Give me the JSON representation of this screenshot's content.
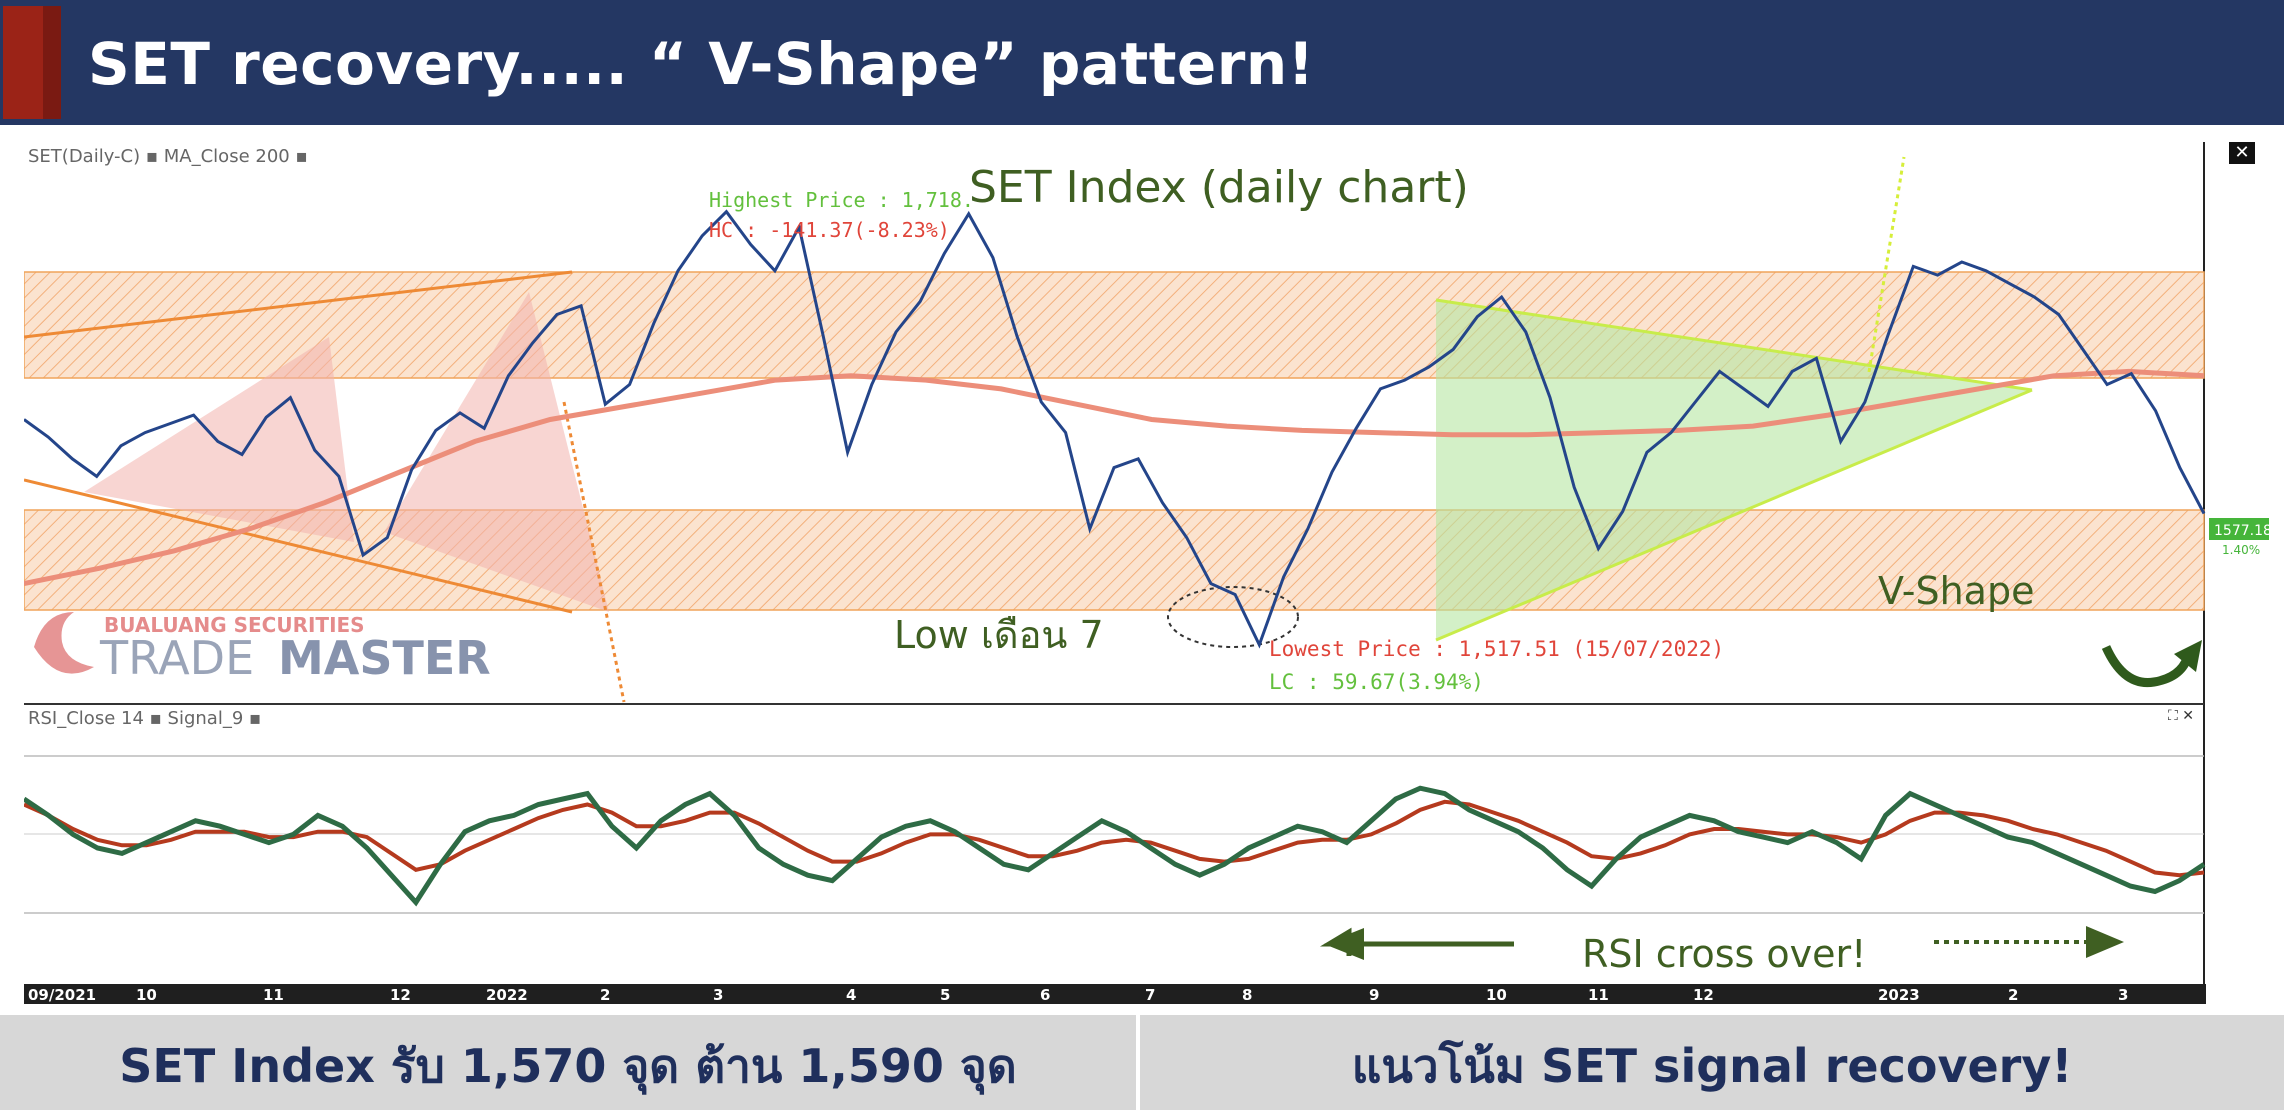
{
  "banner": {
    "title": "SET recovery..... “ V-Shape” pattern!"
  },
  "footer": {
    "left": "SET Index รับ 1,570 จุด ต้าน 1,590 จุด",
    "right": "แนวโน้ม SET signal recovery!"
  },
  "icons": {
    "close": "close-icon",
    "expand": "expand-icon"
  },
  "colors": {
    "banner_bg": "#243763",
    "banner_accent": "#9b2317",
    "price_line": "#24458a",
    "ma_line": "#ec8e7a",
    "zone_fill": "#f7c9a3",
    "zone_border": "#f0a45a",
    "rsi_line": "#2e6b45",
    "rsi_signal": "#b53a1e",
    "annotation_green": "#3f5f22",
    "lowest_red": "#e0453a"
  },
  "chart_data": [
    {
      "type": "line",
      "title": "SET Index (daily chart)",
      "header_label": "SET(Daily-C) ▪ MA_Close 200 ▪",
      "x_ticks": [
        "09/2021",
        "10",
        "11",
        "12",
        "2022",
        "2",
        "3",
        "4",
        "5",
        "6",
        "7",
        "8",
        "9",
        "10",
        "11",
        "12",
        "2023",
        "2",
        "3"
      ],
      "series": [
        {
          "name": "SET(Daily-C)",
          "values": [
            1620,
            1612,
            1602,
            1594,
            1608,
            1614,
            1618,
            1622,
            1610,
            1604,
            1621,
            1630,
            1606,
            1594,
            1558,
            1566,
            1597,
            1615,
            1623,
            1616,
            1640,
            1655,
            1668,
            1672,
            1627,
            1636,
            1664,
            1688,
            1704,
            1715,
            1700,
            1688,
            1708,
            1658,
            1605,
            1636,
            1660,
            1674,
            1696,
            1714,
            1694,
            1658,
            1628,
            1614,
            1570,
            1598,
            1602,
            1582,
            1566,
            1545,
            1540,
            1517,
            1548,
            1570,
            1596,
            1616,
            1634,
            1638,
            1644,
            1652,
            1667,
            1676,
            1660,
            1630,
            1589,
            1561,
            1578,
            1605,
            1614,
            1628,
            1642,
            1634,
            1626,
            1642,
            1648,
            1610,
            1628,
            1660,
            1690,
            1686,
            1692,
            1688,
            1682,
            1676,
            1668,
            1652,
            1636,
            1641,
            1624,
            1598,
            1577
          ]
        },
        {
          "name": "MA_Close 200",
          "values": [
            1545,
            1552,
            1560,
            1570,
            1582,
            1596,
            1610,
            1620,
            1626,
            1632,
            1638,
            1640,
            1638,
            1634,
            1627,
            1620,
            1617,
            1615,
            1614,
            1613,
            1613,
            1614,
            1615,
            1617,
            1622,
            1628,
            1634,
            1640,
            1642,
            1640
          ]
        }
      ],
      "annotations": {
        "highest": "Highest Price : 1,718.",
        "hc": "HC : -141.37(-8.23%)",
        "low_july": "Low เดือน 7",
        "lowest": "Lowest Price : 1,517.51 (15/07/2022)",
        "lc": "LC : 59.67(3.94%)",
        "vshape": "V-Shape",
        "last_price": "1577.18",
        "last_change": "1.40%"
      },
      "watermark": {
        "company": "BUALUANG SECURITIES",
        "brand_a": "TRADE",
        "brand_b": "MASTER"
      }
    },
    {
      "type": "line",
      "header_label": "RSI_Close 14 ▪ Signal_9 ▪",
      "ylim": [
        0,
        100
      ],
      "series": [
        {
          "name": "RSI_Close 14",
          "values": [
            68,
            62,
            55,
            50,
            48,
            52,
            56,
            60,
            58,
            55,
            52,
            55,
            62,
            58,
            50,
            40,
            30,
            44,
            56,
            60,
            62,
            66,
            68,
            70,
            58,
            50,
            60,
            66,
            70,
            62,
            50,
            44,
            40,
            38,
            46,
            54,
            58,
            60,
            56,
            50,
            44,
            42,
            48,
            54,
            60,
            56,
            50,
            44,
            40,
            44,
            50,
            54,
            58,
            56,
            52,
            60,
            68,
            72,
            70,
            64,
            60,
            56,
            50,
            42,
            36,
            46,
            54,
            58,
            62,
            60,
            56,
            54,
            52,
            56,
            52,
            46,
            62,
            70,
            66,
            62,
            58,
            54,
            52,
            48,
            44,
            40,
            36,
            34,
            38,
            44
          ]
        },
        {
          "name": "Signal_9",
          "values": [
            66,
            62,
            57,
            53,
            51,
            51,
            53,
            56,
            56,
            56,
            54,
            54,
            56,
            56,
            54,
            48,
            42,
            44,
            49,
            53,
            57,
            61,
            64,
            66,
            63,
            58,
            58,
            60,
            63,
            63,
            59,
            54,
            49,
            45,
            45,
            48,
            52,
            55,
            55,
            53,
            50,
            47,
            47,
            49,
            52,
            53,
            52,
            49,
            46,
            45,
            46,
            49,
            52,
            53,
            53,
            55,
            59,
            64,
            67,
            66,
            63,
            60,
            56,
            52,
            47,
            46,
            48,
            51,
            55,
            57,
            57,
            56,
            55,
            55,
            54,
            52,
            55,
            60,
            63,
            63,
            62,
            60,
            57,
            55,
            52,
            49,
            45,
            41,
            40,
            41
          ]
        }
      ],
      "annotations": {
        "cross": "RSI cross over!"
      }
    }
  ]
}
